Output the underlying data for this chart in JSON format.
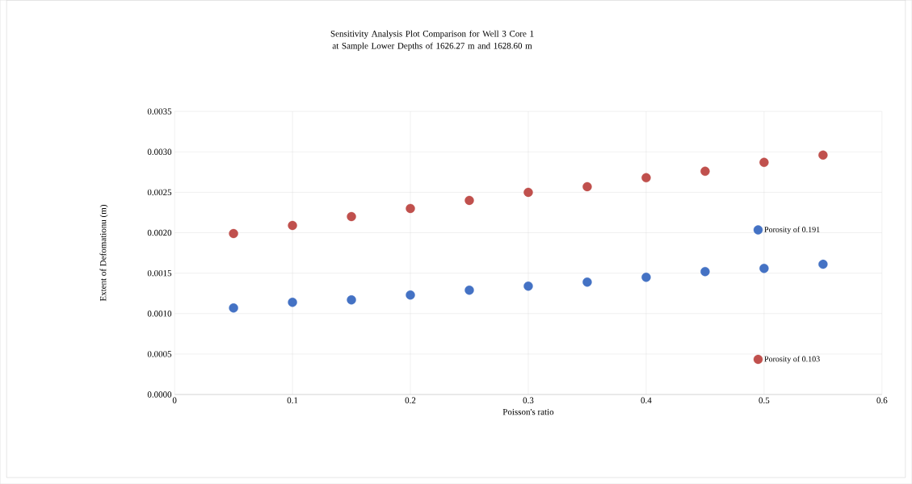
{
  "chart_data": {
    "type": "scatter",
    "title": "Sensitivity Analysis Plot Comparison for Well 3 Core 1 at Sample Lower Depths of 1626.27 m and 1628.60 m",
    "xlabel": "Poisson's ratio",
    "ylabel": "Extent of Defomationu (m)",
    "x": [
      0.05,
      0.1,
      0.15,
      0.2,
      0.25,
      0.3,
      0.35,
      0.4,
      0.45,
      0.5,
      0.55
    ],
    "series": [
      {
        "name": "Porosity of 0.191",
        "color": "#4472c4",
        "values": [
          0.00107,
          0.00114,
          0.00117,
          0.00123,
          0.00129,
          0.00134,
          0.00139,
          0.00145,
          0.00152,
          0.00156,
          0.00161
        ]
      },
      {
        "name": "Porosity of 0.103",
        "color": "#c0504d",
        "values": [
          0.00199,
          0.00209,
          0.0022,
          0.0023,
          0.0024,
          0.0025,
          0.00257,
          0.00268,
          0.00276,
          0.00287,
          0.00296
        ]
      }
    ],
    "xlim": [
      0,
      0.6
    ],
    "ylim": [
      0,
      0.0035
    ],
    "xticks": [
      0,
      0.1,
      0.2,
      0.3,
      0.4,
      0.5,
      0.6
    ],
    "yticks": [
      {
        "value": 0,
        "label": "0.0000"
      },
      {
        "value": 0.0005,
        "label": "0.0005"
      },
      {
        "value": 0.001,
        "label": "0.0010"
      },
      {
        "value": 0.0015,
        "label": "0.0015"
      },
      {
        "value": 0.002,
        "label": "0.0020"
      },
      {
        "value": 0.0025,
        "label": "0.0025"
      },
      {
        "value": 0.003,
        "label": "0.0030"
      },
      {
        "value": 0.0035,
        "label": "0.0035"
      }
    ],
    "grid": true,
    "legend": "right",
    "marker": "circle"
  }
}
